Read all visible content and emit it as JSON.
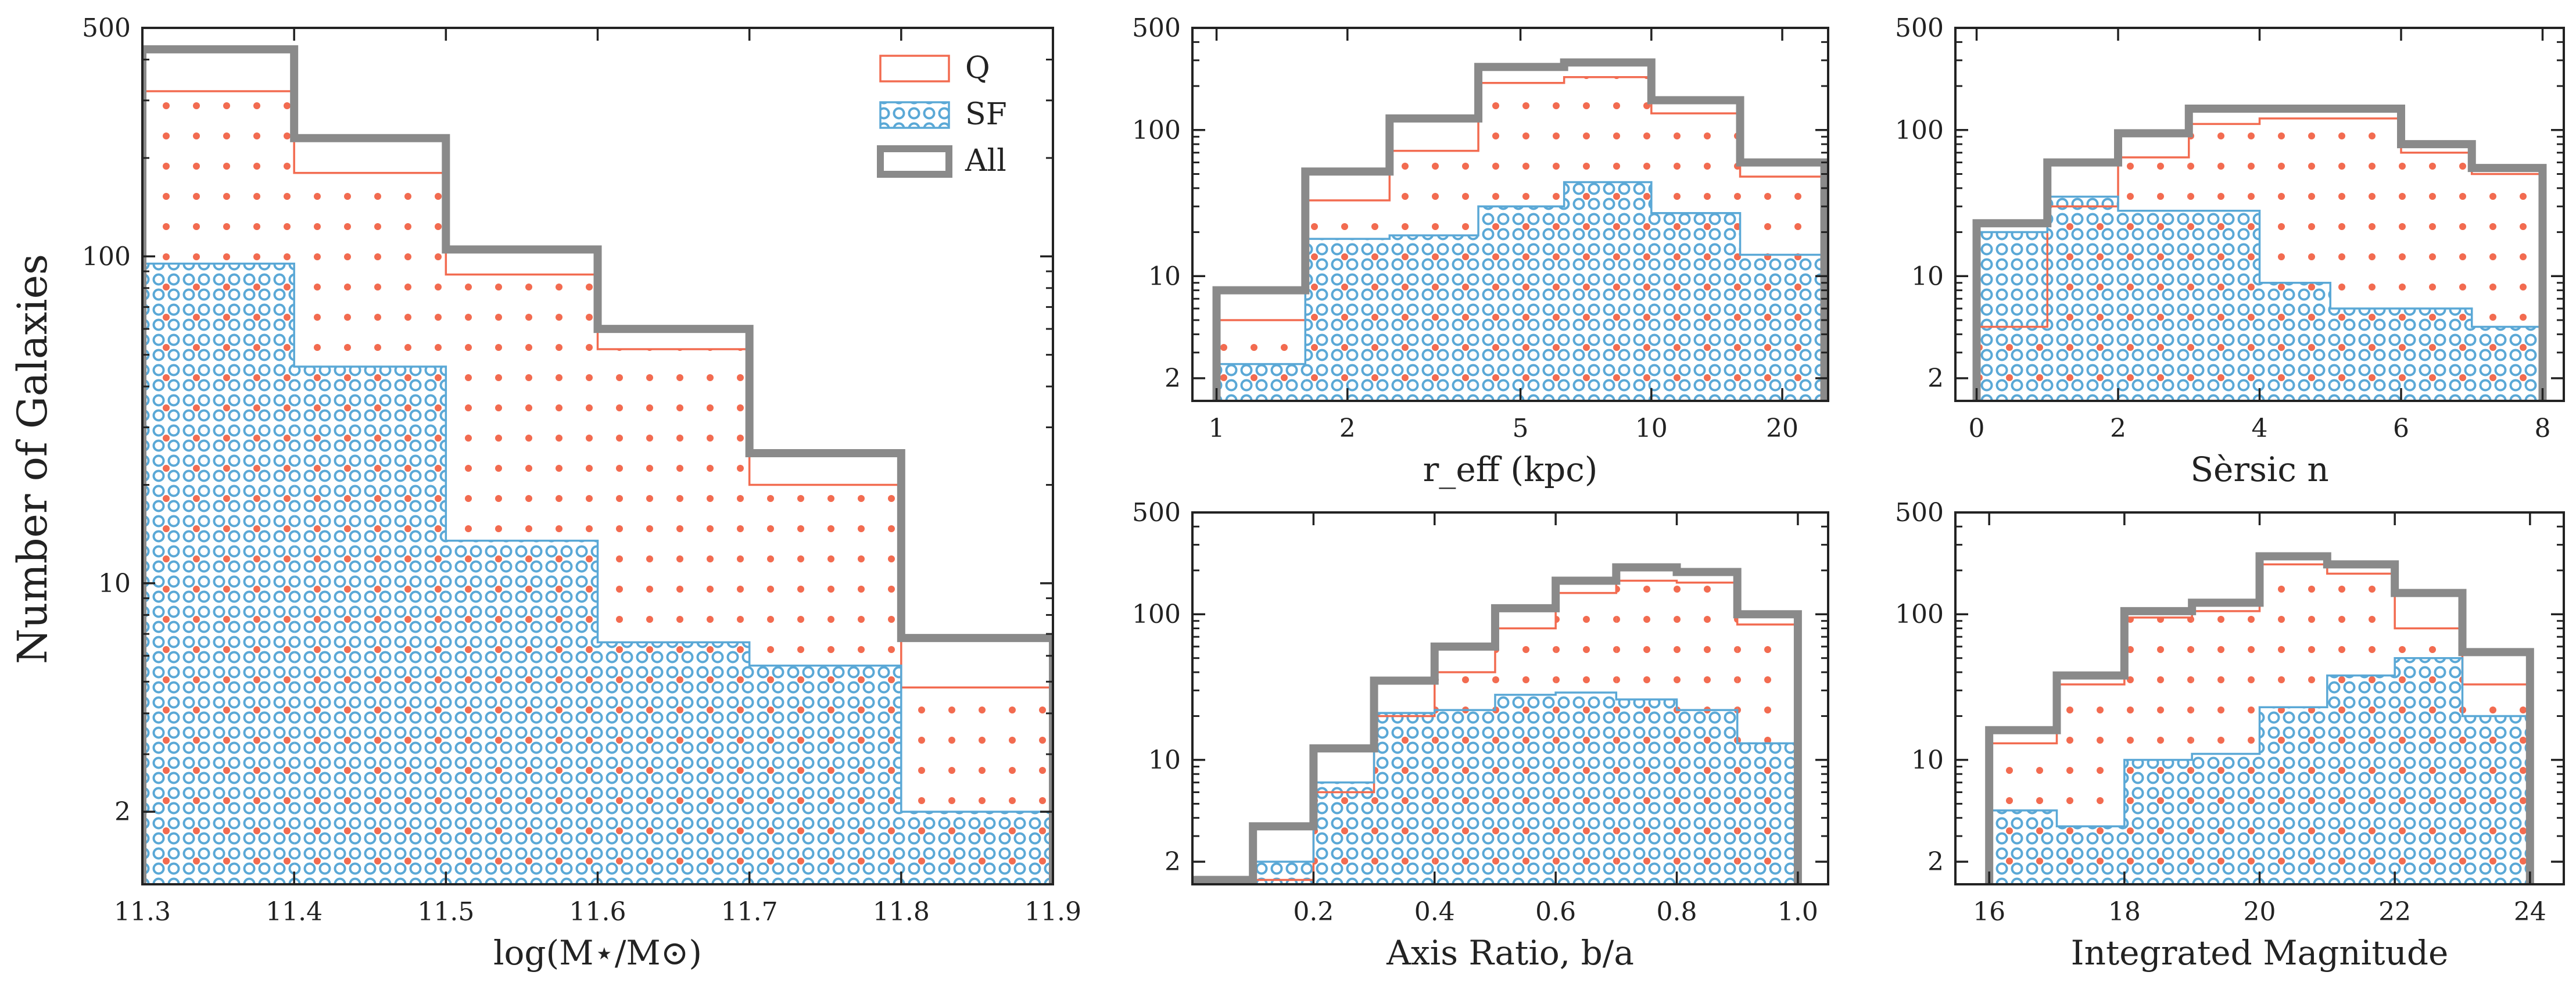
{
  "figure": {
    "ylabel": "Number of Galaxies",
    "colors": {
      "Q": "#f26b50",
      "SF": "#5aa8d6",
      "All": "#8a8a8a",
      "axis": "#222222"
    },
    "legend": {
      "location": "top-right",
      "entries": [
        "Q",
        "SF",
        "All"
      ]
    }
  },
  "chart_data": [
    {
      "type": "bar",
      "histtype": "step",
      "xlabel": "log(M⋆/M⊙)",
      "yscale": "log",
      "xlim": [
        11.3,
        11.9
      ],
      "ylim": [
        1.2,
        500
      ],
      "xticks": [
        11.3,
        11.4,
        11.5,
        11.6,
        11.7,
        11.8,
        11.9
      ],
      "xtick_labels": [
        "11.3",
        "11.4",
        "11.5",
        "11.6",
        "11.7",
        "11.8",
        "11.9"
      ],
      "yticks": [
        2,
        10,
        100,
        500
      ],
      "ytick_labels": [
        "2",
        "10",
        "100",
        "500"
      ],
      "bin_edges": [
        11.3,
        11.4,
        11.5,
        11.6,
        11.7,
        11.8,
        11.9
      ],
      "series": [
        {
          "name": "Q",
          "values": [
            320,
            180,
            88,
            52,
            20,
            4.8
          ]
        },
        {
          "name": "SF",
          "values": [
            95,
            46,
            13.5,
            6.6,
            5.6,
            2
          ]
        },
        {
          "name": "All",
          "values": [
            430,
            230,
            105,
            60,
            25,
            6.8
          ]
        }
      ]
    },
    {
      "type": "bar",
      "histtype": "step",
      "xlabel": "r_eff (kpc)",
      "xscale": "log",
      "yscale": "log",
      "xlim": [
        0.88,
        25.5
      ],
      "ylim": [
        1.4,
        500
      ],
      "xticks": [
        1,
        2,
        5,
        10,
        20
      ],
      "xtick_labels": [
        "1",
        "2",
        "5",
        "10",
        "20"
      ],
      "yticks": [
        2,
        10,
        100,
        500
      ],
      "ytick_labels": [
        "2",
        "10",
        "100",
        "500"
      ],
      "bin_edges": [
        1,
        1.6,
        2.5,
        4,
        6.3,
        10,
        16,
        25
      ],
      "series": [
        {
          "name": "Q",
          "values": [
            5,
            33,
            72,
            210,
            230,
            130,
            48
          ]
        },
        {
          "name": "SF",
          "values": [
            2.5,
            18,
            19,
            30,
            44,
            27,
            14
          ]
        },
        {
          "name": "All",
          "values": [
            8,
            52,
            120,
            270,
            290,
            160,
            60
          ]
        }
      ]
    },
    {
      "type": "bar",
      "histtype": "step",
      "xlabel": "Sèrsic n",
      "yscale": "log",
      "xlim": [
        -0.3,
        8.3
      ],
      "ylim": [
        1.4,
        500
      ],
      "xticks": [
        0,
        2,
        4,
        6,
        8
      ],
      "xtick_labels": [
        "0",
        "2",
        "4",
        "6",
        "8"
      ],
      "yticks": [
        2,
        10,
        100,
        500
      ],
      "ytick_labels": [
        "2",
        "10",
        "100",
        "500"
      ],
      "bin_edges": [
        0,
        1,
        2,
        3,
        4,
        5,
        6,
        7,
        8
      ],
      "series": [
        {
          "name": "Q",
          "values": [
            4.5,
            30,
            65,
            110,
            120,
            120,
            70,
            50
          ]
        },
        {
          "name": "SF",
          "values": [
            20,
            35,
            28,
            28,
            9,
            6,
            6,
            4.5
          ]
        },
        {
          "name": "All",
          "values": [
            23,
            60,
            95,
            140,
            140,
            140,
            80,
            55
          ]
        }
      ]
    },
    {
      "type": "bar",
      "histtype": "step",
      "xlabel": "Axis Ratio, b/a",
      "yscale": "log",
      "xlim": [
        0.0,
        1.05
      ],
      "ylim": [
        1.4,
        500
      ],
      "xticks": [
        0.2,
        0.4,
        0.6,
        0.8,
        1.0
      ],
      "xtick_labels": [
        "0.2",
        "0.4",
        "0.6",
        "0.8",
        "1.0"
      ],
      "yticks": [
        2,
        10,
        100,
        500
      ],
      "ytick_labels": [
        "2",
        "10",
        "100",
        "500"
      ],
      "bin_edges": [
        0,
        0.1,
        0.2,
        0.3,
        0.4,
        0.5,
        0.6,
        0.7,
        0.8,
        0.9,
        1.0
      ],
      "series": [
        {
          "name": "Q",
          "values": [
            1.5,
            1.5,
            6,
            20,
            40,
            80,
            140,
            170,
            165,
            85
          ]
        },
        {
          "name": "SF",
          "values": [
            1.5,
            2,
            7,
            21,
            22,
            28,
            29,
            26,
            22,
            13
          ]
        },
        {
          "name": "All",
          "values": [
            1.5,
            3.5,
            12,
            35,
            60,
            110,
            170,
            210,
            195,
            100
          ]
        }
      ]
    },
    {
      "type": "bar",
      "histtype": "step",
      "xlabel": "Integrated Magnitude",
      "yscale": "log",
      "xlim": [
        15.5,
        24.5
      ],
      "ylim": [
        1.4,
        500
      ],
      "xticks": [
        16,
        18,
        20,
        22,
        24
      ],
      "xtick_labels": [
        "16",
        "18",
        "20",
        "22",
        "24"
      ],
      "yticks": [
        2,
        10,
        100,
        500
      ],
      "ytick_labels": [
        "2",
        "10",
        "100",
        "500"
      ],
      "bin_edges": [
        16,
        17,
        18,
        19,
        20,
        21,
        22,
        23,
        24
      ],
      "series": [
        {
          "name": "Q",
          "values": [
            13,
            33,
            95,
            105,
            220,
            190,
            80,
            33
          ]
        },
        {
          "name": "SF",
          "values": [
            4.5,
            3.5,
            10,
            11,
            23,
            38,
            50,
            20
          ]
        },
        {
          "name": "All",
          "values": [
            16,
            38,
            105,
            120,
            250,
            220,
            140,
            55
          ]
        }
      ]
    }
  ]
}
